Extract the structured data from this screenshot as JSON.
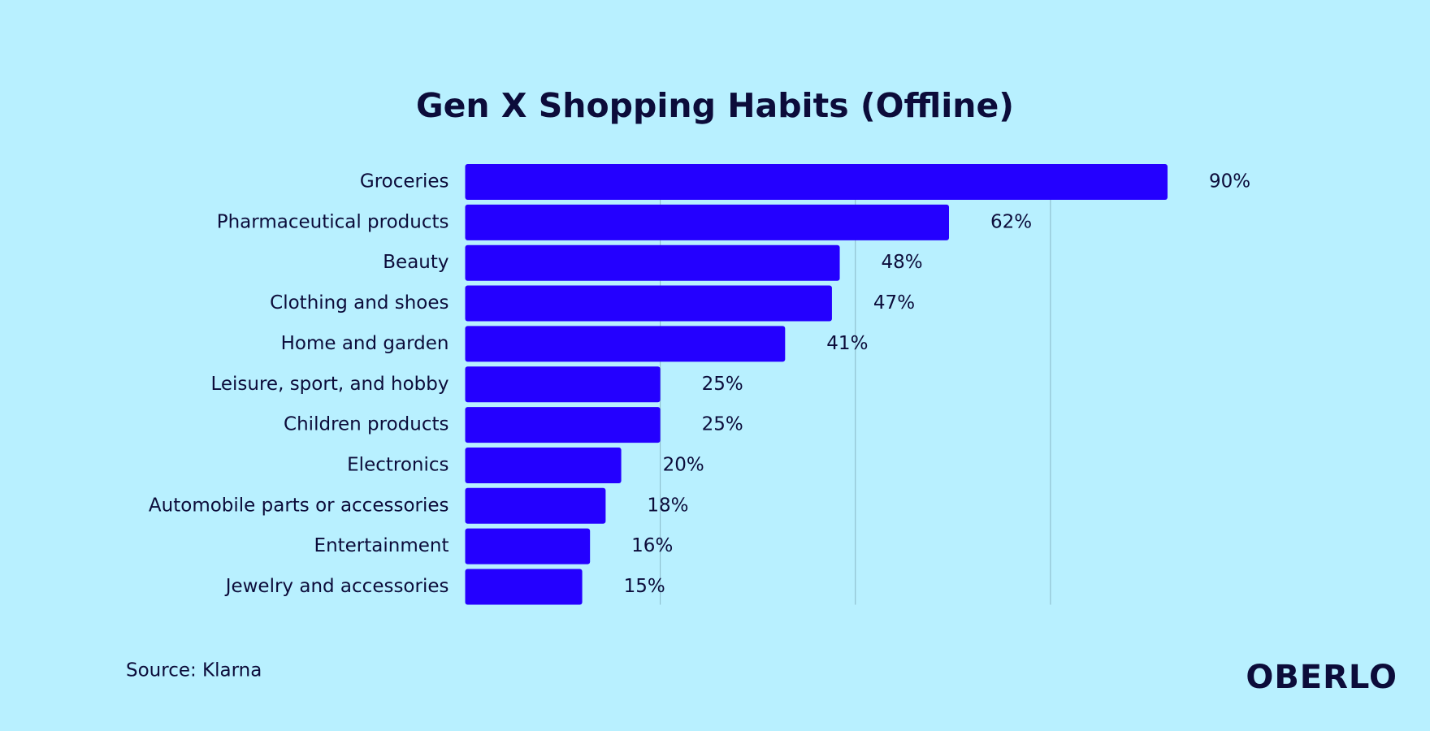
{
  "chart_data": {
    "type": "barh",
    "title": "Gen X Shopping Habits (Offline)",
    "categories": [
      "Groceries",
      "Pharmaceutical products",
      "Beauty",
      "Clothing and shoes",
      "Home and garden",
      "Leisure, sport, and hobby",
      "Children products",
      "Electronics",
      "Automobile parts or accessories",
      "Entertainment",
      "Jewelry and accessories"
    ],
    "values": [
      90,
      62,
      48,
      47,
      41,
      25,
      25,
      20,
      18,
      16,
      15
    ],
    "value_labels": [
      "90%",
      "62%",
      "48%",
      "47%",
      "41%",
      "25%",
      "25%",
      "20%",
      "18%",
      "16%",
      "15%"
    ],
    "color": "#2400ff",
    "xlim": [
      0,
      100
    ],
    "xticks": [
      25,
      50,
      75
    ],
    "grid": true,
    "source": "Source: Klarna"
  },
  "brand": "OBERLO"
}
